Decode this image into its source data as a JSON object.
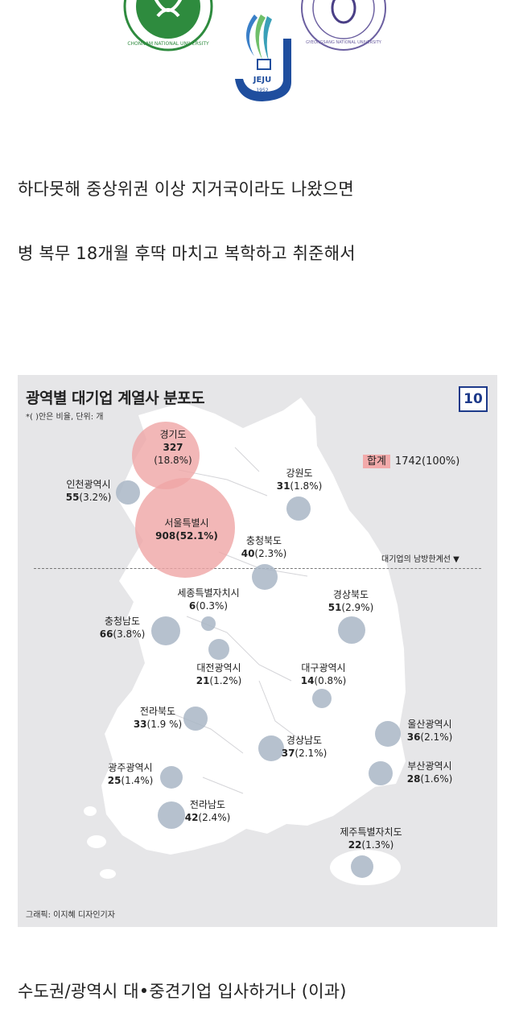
{
  "logos": {
    "chonnam_text": "CHONNAM NATIONAL UNIVERSITY",
    "gyeongsang_text": "GYEONGSANG NATIONAL UNIVERSITY",
    "jeju_text": "JEJU",
    "jeju_year": "1952"
  },
  "post": {
    "line1": "하다못해 중상위권 이상 지거국이라도 나왔으면",
    "line2": "병 복무 18개월 후딱 마치고 복학하고 취준해서",
    "line3": "수도권/광역시 대•중견기업 입사하거나 (이과)"
  },
  "map": {
    "title": "광역별 대기업 계열사 분포도",
    "subtitle": "*( )안은 비율, 단위: 개",
    "page_badge": "10",
    "total_label": "합계",
    "total_value": "1742(100%)",
    "divider_label": "대기업의 남방한계선 ▼",
    "credit": "그래픽: 이지혜 디자인기자",
    "regions": [
      {
        "name": "경기도",
        "count": "327",
        "pct": "(18.8%)"
      },
      {
        "name": "인천광역시",
        "count": "55",
        "pct": "(3.2%)"
      },
      {
        "name": "서울특별시",
        "count": "908",
        "pct": "(52.1%)"
      },
      {
        "name": "강원도",
        "count": "31",
        "pct": "(1.8%)"
      },
      {
        "name": "충청북도",
        "count": "40",
        "pct": "(2.3%)"
      },
      {
        "name": "세종특별자치시",
        "count": "6",
        "pct": "(0.3%)"
      },
      {
        "name": "충청남도",
        "count": "66",
        "pct": "(3.8%)"
      },
      {
        "name": "경상북도",
        "count": "51",
        "pct": "(2.9%)"
      },
      {
        "name": "대전광역시",
        "count": "21",
        "pct": "(1.2%)"
      },
      {
        "name": "대구광역시",
        "count": "14",
        "pct": "(0.8%)"
      },
      {
        "name": "전라북도",
        "count": "33",
        "pct": "(1.9 %)"
      },
      {
        "name": "울산광역시",
        "count": "36",
        "pct": "(2.1%)"
      },
      {
        "name": "경상남도",
        "count": "37",
        "pct": "(2.1%)"
      },
      {
        "name": "광주광역시",
        "count": "25",
        "pct": "(1.4%)"
      },
      {
        "name": "부산광역시",
        "count": "28",
        "pct": "(1.6%)"
      },
      {
        "name": "전라남도",
        "count": "42",
        "pct": "(2.4%)"
      },
      {
        "name": "제주특별자치도",
        "count": "22",
        "pct": "(1.3%)"
      }
    ],
    "colors": {
      "highlight": "#efa5a5",
      "bubble": "#a9b6c6",
      "badge": "#1d3a8a"
    }
  }
}
